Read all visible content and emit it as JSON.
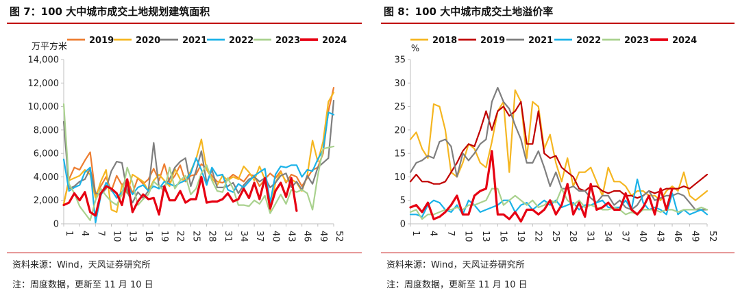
{
  "charts": [
    {
      "fig_title": "图 7：100 大中城市成交土地规划建筑面积",
      "source": "资料来源：Wind，天风证券研究所",
      "note": "注：周度数据，更新至 11 月 10 日",
      "chart_data": {
        "type": "line",
        "title": "图 7：100 大中城市成交土地规划建筑面积",
        "ylabel": "万平方米",
        "xlabel": "",
        "ylim": [
          0,
          14000
        ],
        "yticks": [
          0,
          2000,
          4000,
          6000,
          8000,
          10000,
          12000,
          14000
        ],
        "ytick_labels": [
          "0",
          "2,000",
          "4,000",
          "6,000",
          "8,000",
          "10,000",
          "12,000",
          "14,000"
        ],
        "xlim": [
          1,
          52
        ],
        "xticks": [
          1,
          4,
          7,
          10,
          13,
          16,
          19,
          22,
          25,
          28,
          31,
          34,
          37,
          40,
          43,
          46,
          49,
          52
        ],
        "grid": false,
        "legend_position": "top",
        "series": [
          {
            "name": "2019",
            "color": "#ed7d31",
            "width": 2.2,
            "values": [
              1700,
              3800,
              4800,
              4600,
              5400,
              6100,
              2500,
              3200,
              4000,
              2800,
              4100,
              3300,
              3800,
              2600,
              3900,
              3400,
              3800,
              4700,
              3700,
              5100,
              3500,
              4100,
              5000,
              3600,
              4100,
              4200,
              5100,
              4700,
              4100,
              3600,
              3500,
              3800,
              4200,
              3900,
              3600,
              4200,
              4100,
              3200,
              3800,
              4300,
              3900,
              4500,
              3500,
              4200,
              4000,
              3200,
              3900,
              4600,
              4800,
              6000,
              9600,
              11600
            ]
          },
          {
            "name": "2020",
            "color": "#f5b621",
            "width": 2.2,
            "values": [
              1700,
              3700,
              3900,
              4100,
              4600,
              4200,
              2200,
              3600,
              4600,
              1200,
              1000,
              3300,
              2600,
              4200,
              3900,
              3600,
              2800,
              3700,
              4200,
              3700,
              3200,
              4700,
              3800,
              3700,
              4500,
              5500,
              7200,
              4600,
              3900,
              3300,
              4100,
              3700,
              4000,
              3800,
              4900,
              4400,
              3700,
              4900,
              3800,
              1100,
              3500,
              4400,
              3600,
              3800,
              3500,
              2800,
              4100,
              7100,
              5300,
              7000,
              10400,
              11200
            ]
          },
          {
            "name": "2021",
            "color": "#7f7f7f",
            "width": 2.2,
            "values": [
              8700,
              3000,
              3200,
              3600,
              3800,
              4700,
              2600,
              2500,
              3000,
              4500,
              5300,
              5200,
              2700,
              1800,
              2700,
              2200,
              2800,
              6900,
              3100,
              3200,
              3800,
              4800,
              5300,
              5600,
              3200,
              4500,
              6200,
              3500,
              4600,
              3100,
              3100,
              3200,
              3500,
              2600,
              3300,
              3800,
              4000,
              3600,
              3900,
              3100,
              3500,
              4100,
              4300,
              3100,
              3600,
              2900,
              4100,
              3400,
              4800,
              5200,
              5600,
              10500
            ]
          },
          {
            "name": "2022",
            "color": "#1ab2e8",
            "width": 2.2,
            "values": [
              5500,
              2800,
              3100,
              3300,
              4400,
              4800,
              100,
              2400,
              3500,
              2900,
              2200,
              2700,
              3300,
              2500,
              3100,
              3300,
              2800,
              3200,
              3000,
              3600,
              3400,
              3200,
              3500,
              3700,
              4300,
              5600,
              4600,
              3300,
              4800,
              4100,
              4200,
              2900,
              2700,
              3400,
              3100,
              3600,
              4100,
              4400,
              4700,
              1800,
              4200,
              4900,
              4800,
              5000,
              5000,
              4000,
              4600,
              4500,
              5500,
              6300,
              9500,
              9300
            ]
          },
          {
            "name": "2023",
            "color": "#a9d18e",
            "width": 2.2,
            "values": [
              10200,
              3400,
              2600,
              1500,
              900,
              300,
              2000,
              3000,
              2400,
              1900,
              1600,
              2500,
              4800,
              3500,
              1600,
              2100,
              2500,
              3600,
              3200,
              2800,
              4800,
              3000,
              3700,
              4100,
              2500,
              3000,
              4300,
              5000,
              3700,
              2800,
              2700,
              3900,
              3000,
              1600,
              1600,
              1500,
              2000,
              1700,
              2400,
              900,
              1700,
              2500,
              1700,
              2900,
              2700,
              2900,
              2600,
              1200,
              4100,
              6400,
              6500,
              6600
            ]
          },
          {
            "name": "2024",
            "color": "#e60012",
            "width": 3.2,
            "values": [
              1600,
              1800,
              2600,
              2000,
              2700,
              1000,
              700,
              2600,
              3200,
              3000,
              2600,
              1600,
              3800,
              1000,
              1900,
              2500,
              2100,
              2200,
              800,
              3200,
              2000,
              2000,
              2800,
              1800,
              2100,
              2100,
              4000,
              1800,
              1900,
              1900,
              2100,
              2600,
              1900,
              2100,
              3000,
              2200,
              3500,
              2100,
              3900,
              1300,
              2800,
              3500,
              2300,
              3900,
              1100
            ]
          }
        ]
      }
    },
    {
      "fig_title": "图 8：100 大中城市成交土地溢价率",
      "source": "资料来源：Wind，天风证券研究所",
      "note": "注：周度数据，更新至 11 月 10 日",
      "chart_data": {
        "type": "line",
        "title": "图 8：100 大中城市成交土地溢价率",
        "ylabel": "%",
        "xlabel": "",
        "ylim": [
          0,
          35
        ],
        "yticks": [
          0,
          5,
          10,
          15,
          20,
          25,
          30,
          35
        ],
        "ytick_labels": [
          "0",
          "5",
          "10",
          "15",
          "20",
          "25",
          "30",
          "35"
        ],
        "xlim": [
          1,
          52
        ],
        "xticks": [
          1,
          4,
          7,
          10,
          13,
          16,
          19,
          22,
          25,
          28,
          31,
          34,
          37,
          40,
          43,
          46,
          49,
          52
        ],
        "grid": false,
        "legend_position": "top",
        "series": [
          {
            "name": "2018",
            "color": "#f5b621",
            "width": 2.2,
            "values": [
              18,
              19.5,
              16,
              14,
              25.5,
              25,
              20,
              11,
              10,
              13,
              17,
              16,
              13,
              12,
              17.5,
              24,
              26,
              11,
              28.5,
              26,
              14,
              26,
              25,
              16,
              19,
              13,
              9,
              14,
              8,
              11,
              11,
              12,
              9,
              6,
              12,
              9,
              9,
              8,
              6,
              7,
              7,
              6,
              6,
              5,
              7,
              8,
              7,
              11,
              6,
              5,
              6,
              7
            ]
          },
          {
            "name": "2019",
            "color": "#c00000",
            "width": 2.2,
            "values": [
              9,
              10.5,
              9,
              9,
              8.5,
              8.5,
              9,
              11,
              13,
              15.5,
              17,
              16.5,
              20,
              24,
              20,
              24,
              25,
              23,
              24,
              26,
              17,
              17,
              24,
              15,
              14,
              14.5,
              12,
              11,
              10,
              7.5,
              7,
              8,
              8,
              7,
              6.5,
              7,
              7,
              6,
              6,
              5.5,
              6,
              7,
              6.5,
              7,
              7.5,
              7.5,
              7.5,
              8,
              7.5,
              8.5,
              9.5,
              10.5
            ]
          },
          {
            "name": "2021",
            "color": "#7f7f7f",
            "width": 2.2,
            "values": [
              11,
              13,
              13.5,
              14.5,
              14,
              17.5,
              18,
              16.5,
              10,
              15,
              13.5,
              15,
              17,
              18,
              26,
              29,
              26,
              24.5,
              21,
              18,
              13,
              13,
              15.5,
              12,
              8,
              11,
              7.5,
              7.5,
              8,
              7,
              7,
              5.5,
              4.5,
              6,
              6,
              4,
              5,
              3.5,
              3,
              4,
              6,
              7,
              5,
              5.5,
              6,
              6,
              6.5,
              6,
              4.5,
              3,
              3,
              3
            ]
          },
          {
            "name": "2022",
            "color": "#1ab2e8",
            "width": 2.2,
            "values": [
              2,
              2,
              1.5,
              4,
              5,
              4.5,
              3,
              2.5,
              4,
              2,
              5,
              4,
              2.5,
              3,
              3.5,
              4,
              5,
              5,
              2.5,
              4,
              4.5,
              3,
              4,
              5,
              4,
              5,
              3.5,
              4,
              4.5,
              3,
              4,
              4,
              4.5,
              5,
              3.5,
              3.5,
              3.5,
              5,
              3,
              9.5,
              4.5,
              3,
              3.5,
              3,
              2,
              6.5,
              2,
              3,
              2,
              2.5,
              3,
              2
            ]
          },
          {
            "name": "2023",
            "color": "#a9d18e",
            "width": 2.2,
            "values": [
              2.5,
              3,
              1,
              2,
              2,
              2.5,
              3,
              3,
              3.5,
              3,
              4,
              4,
              4.5,
              5,
              7.5,
              7.5,
              4,
              5,
              6,
              5,
              4,
              5,
              3.5,
              4,
              5,
              4.5,
              7.5,
              5,
              4,
              5,
              3.5,
              4,
              3.5,
              3,
              3,
              3.5,
              3,
              2,
              2.5,
              2,
              3,
              3,
              3,
              2.5,
              3,
              3,
              2.5,
              3,
              3,
              3,
              3.5,
              3
            ]
          },
          {
            "name": "2024",
            "color": "#e60012",
            "width": 3.2,
            "values": [
              3.5,
              4,
              2.5,
              4.5,
              1,
              1.5,
              2.5,
              4,
              6,
              2,
              2,
              6,
              7,
              7.5,
              15.5,
              2,
              2,
              1,
              2.5,
              0.5,
              3,
              3,
              2,
              3,
              5,
              2,
              4,
              8.5,
              2,
              4.5,
              1.5,
              8.5,
              3,
              3.5,
              4.5,
              3,
              3,
              6.5,
              3,
              2,
              3.5,
              6,
              2,
              7.5,
              3,
              7.5
            ]
          }
        ]
      }
    }
  ]
}
